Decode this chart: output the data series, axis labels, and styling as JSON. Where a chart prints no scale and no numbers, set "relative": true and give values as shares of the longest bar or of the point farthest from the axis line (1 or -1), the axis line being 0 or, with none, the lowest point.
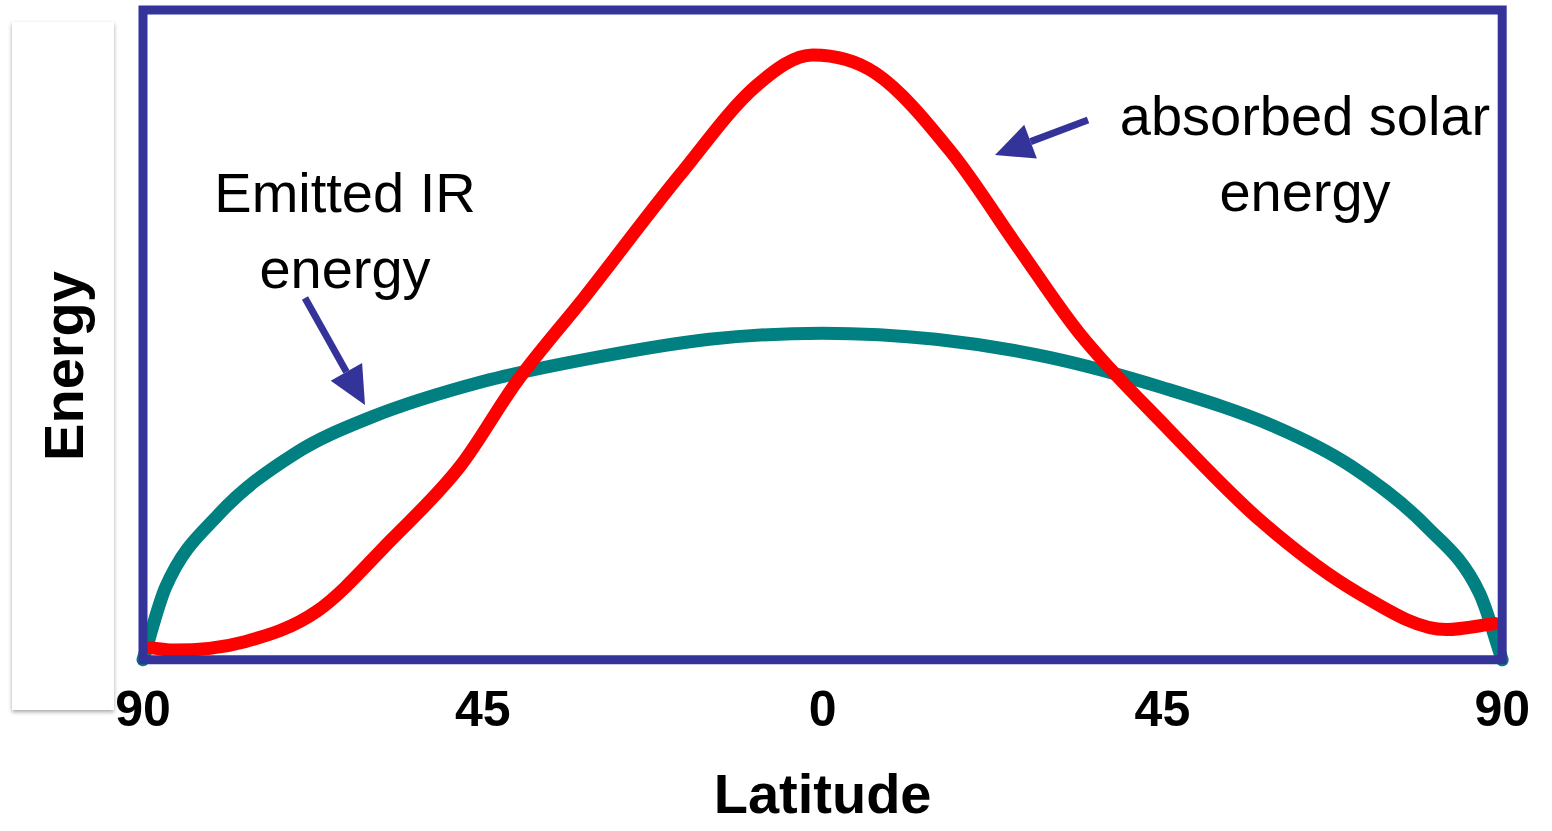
{
  "chart_data": {
    "type": "line",
    "relative": true,
    "xlabel": "Latitude",
    "ylabel": "Energy",
    "xlim": [
      -90,
      90
    ],
    "xticks": [
      {
        "value": -90,
        "label": "90"
      },
      {
        "value": -45,
        "label": "45"
      },
      {
        "value": 0,
        "label": "0"
      },
      {
        "value": 45,
        "label": "45"
      },
      {
        "value": 90,
        "label": "90"
      }
    ],
    "grid": false,
    "legend": false,
    "marker": "none",
    "line_style": "solid",
    "series": [
      {
        "name": "absorbed solar energy",
        "color": "#ff0000",
        "x": [
          -89,
          -86,
          -76.5,
          -67,
          -57,
          -48,
          -40.5,
          -31.5,
          -19,
          -8.7,
          -1.3,
          7,
          17,
          26,
          34,
          45.5,
          58,
          71,
          82.6,
          89
        ],
        "values": [
          0.02,
          0.016,
          0.03,
          0.08,
          0.2,
          0.32,
          0.46,
          0.6,
          0.8,
          0.95,
          1,
          0.97,
          0.84,
          0.68,
          0.54,
          0.385,
          0.23,
          0.11,
          0.05,
          0.06
        ]
      },
      {
        "name": "Emitted IR energy",
        "color": "#008080",
        "x": [
          -90,
          -87,
          -80,
          -70,
          -60,
          -45,
          -30,
          -15,
          0,
          15,
          30,
          45,
          60,
          70,
          80,
          87,
          90
        ],
        "values": [
          0,
          0.12,
          0.24,
          0.34,
          0.4,
          0.46,
          0.5,
          0.53,
          0.54,
          0.53,
          0.5,
          0.45,
          0.385,
          0.32,
          0.22,
          0.11,
          0
        ]
      }
    ]
  }
}
